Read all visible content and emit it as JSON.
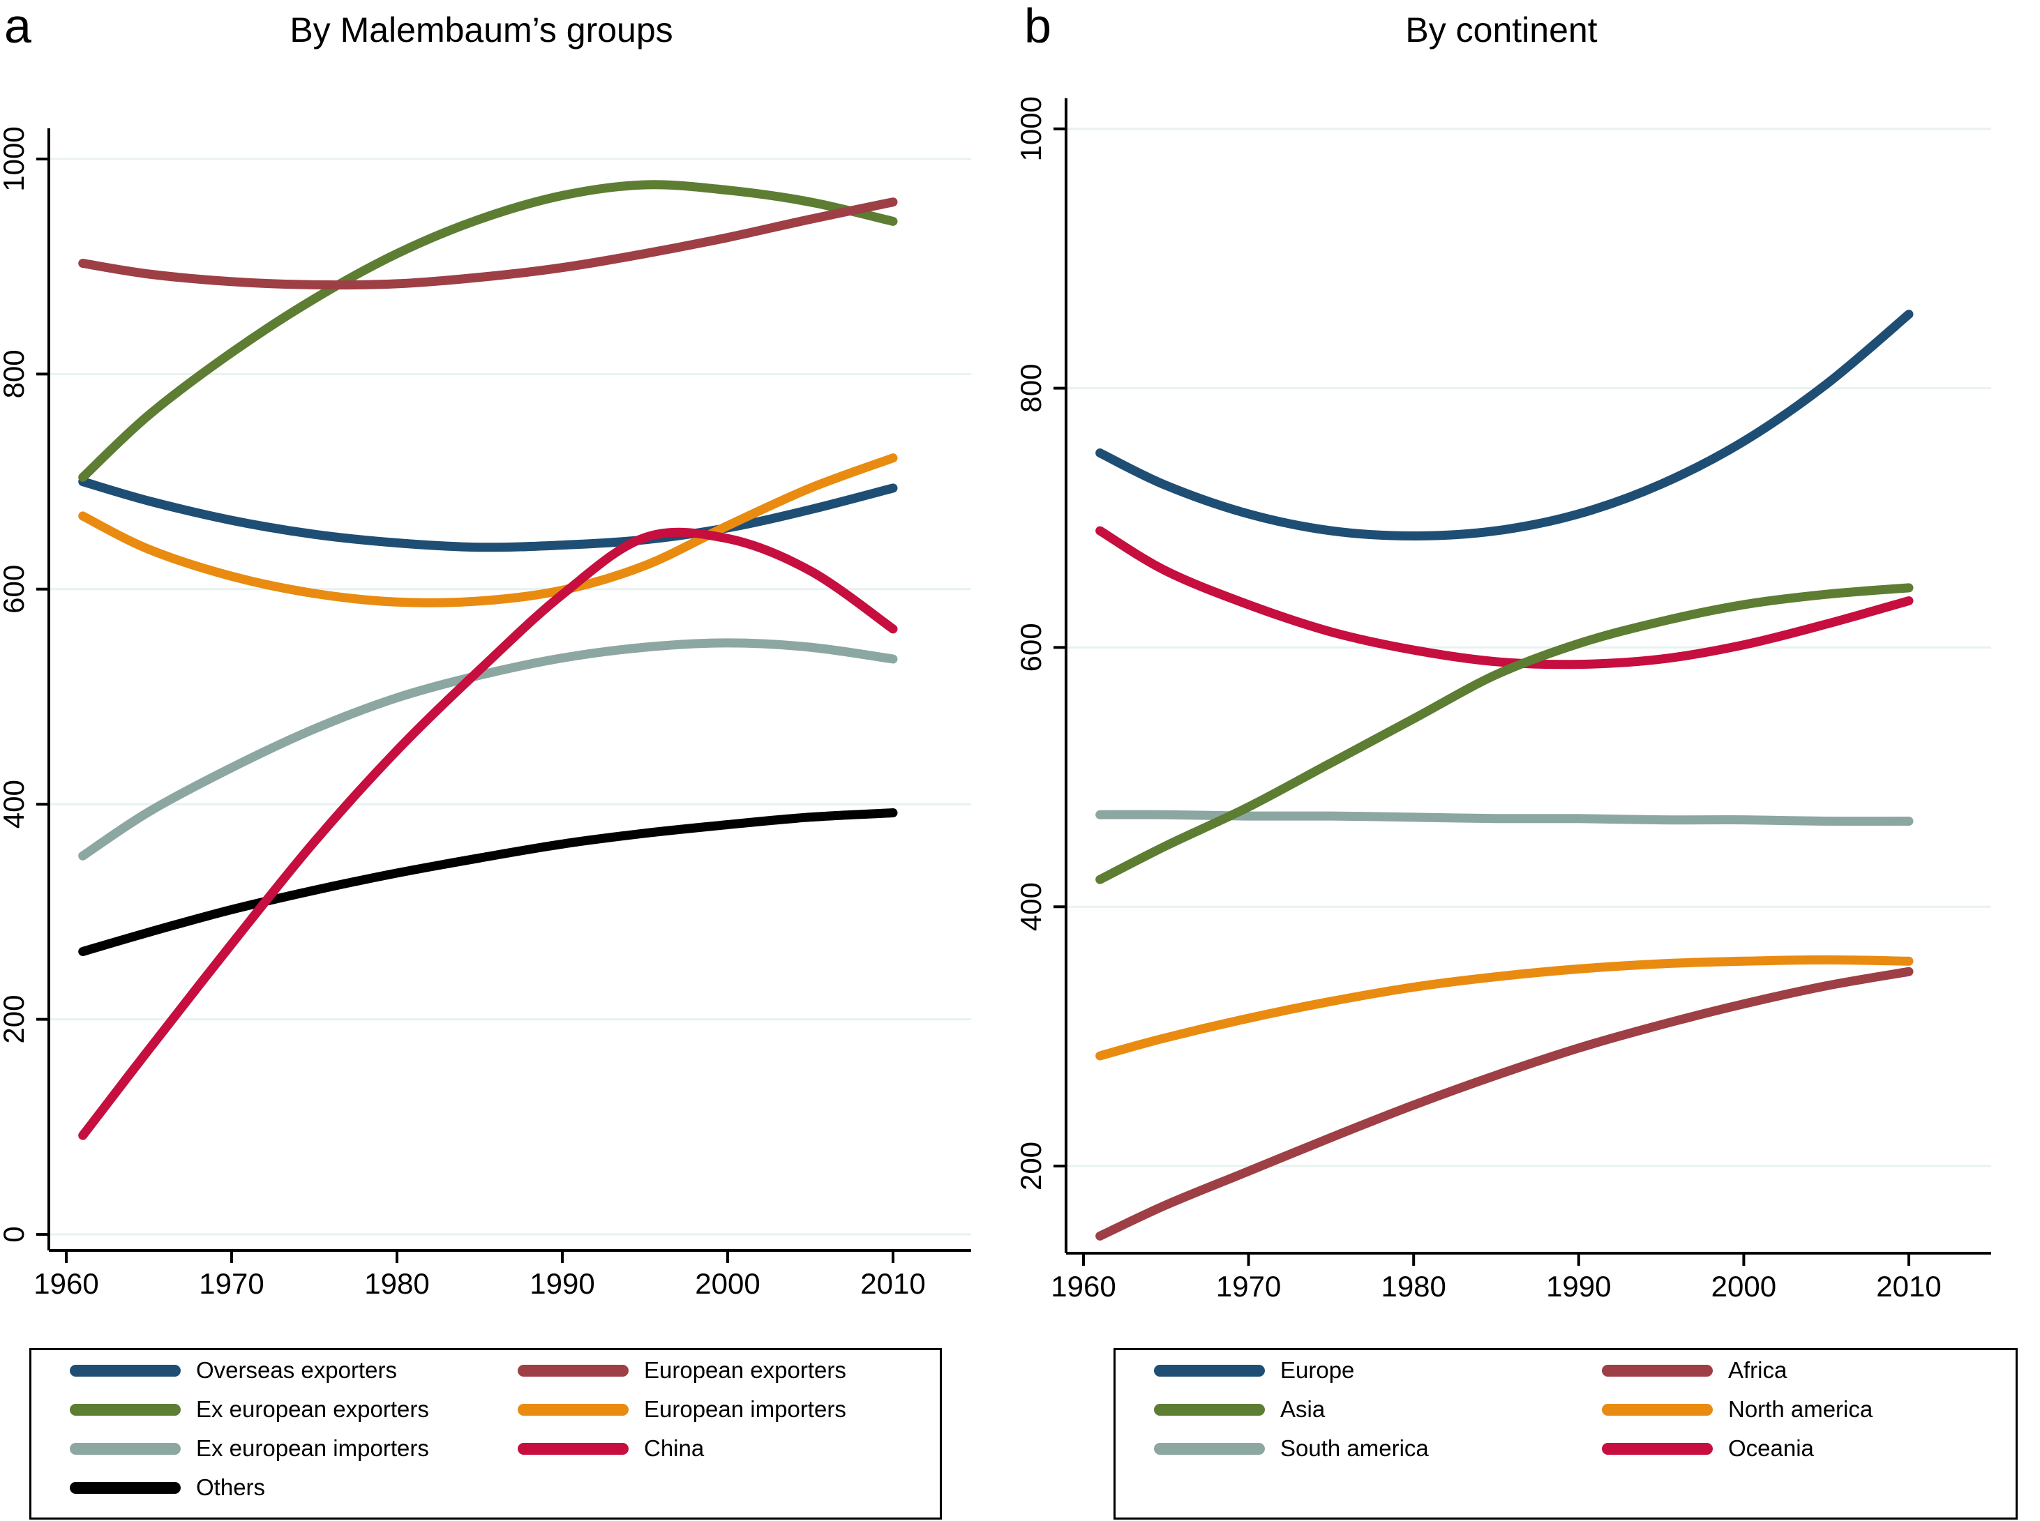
{
  "panels": [
    {
      "letter": "a",
      "title": "By Malembaum’s groups"
    },
    {
      "letter": "b",
      "title": "By continent"
    }
  ],
  "colors": {
    "background": "#ffffff",
    "axis": "#000000",
    "grid": "#e8f2f1",
    "navy": "#1f4e74",
    "maroon": "#9d3f45",
    "olive": "#5d7d33",
    "orange": "#e98b10",
    "sage": "#8ca7a1",
    "crimson": "#c60e3f",
    "black": "#000000"
  },
  "chart_data": [
    {
      "type": "line",
      "panel_label": "a",
      "title": "By Malembaum’s groups",
      "xlabel": "",
      "ylabel": "",
      "x_ticks": [
        1960,
        1970,
        1980,
        1990,
        2000,
        2010
      ],
      "y_ticks": [
        0,
        200,
        400,
        600,
        800,
        1000
      ],
      "ylim": [
        0,
        1030
      ],
      "xlim": [
        1958,
        2014
      ],
      "grid": "horizontal",
      "legend_position": "bottom-box-2col",
      "x": [
        1961,
        1965,
        1970,
        1975,
        1980,
        1985,
        1990,
        1995,
        2000,
        2005,
        2010
      ],
      "series": [
        {
          "name": "Overseas exporters",
          "color": "#1f4e74",
          "values": [
            700,
            682,
            664,
            651,
            643,
            639,
            641,
            646,
            657,
            674,
            694
          ]
        },
        {
          "name": "European exporters",
          "color": "#9d3f45",
          "values": [
            903,
            893,
            886,
            883,
            884,
            890,
            899,
            912,
            927,
            944,
            960
          ]
        },
        {
          "name": "Ex european exporters",
          "color": "#5d7d33",
          "values": [
            704,
            762,
            820,
            870,
            912,
            944,
            966,
            976,
            971,
            960,
            942
          ]
        },
        {
          "name": "European importers",
          "color": "#e98b10",
          "values": [
            668,
            637,
            612,
            596,
            588,
            589,
            599,
            622,
            659,
            694,
            722
          ]
        },
        {
          "name": "Ex european importers",
          "color": "#8ca7a1",
          "values": [
            352,
            393,
            434,
            470,
            499,
            520,
            536,
            546,
            550,
            546,
            535
          ]
        },
        {
          "name": "China",
          "color": "#c60e3f",
          "values": [
            92,
            172,
            270,
            365,
            450,
            525,
            595,
            648,
            647,
            617,
            563
          ]
        },
        {
          "name": "Others",
          "color": "#000000",
          "values": [
            263,
            281,
            302,
            320,
            336,
            350,
            363,
            373,
            381,
            388,
            392
          ]
        }
      ]
    },
    {
      "type": "line",
      "panel_label": "b",
      "title": "By continent",
      "xlabel": "",
      "ylabel": "",
      "x_ticks": [
        1960,
        1970,
        1980,
        1990,
        2000,
        2010
      ],
      "y_ticks": [
        200,
        400,
        600,
        800,
        1000
      ],
      "ylim": [
        133,
        1010
      ],
      "xlim": [
        1958,
        2014
      ],
      "grid": "horizontal",
      "legend_position": "bottom-box-2col",
      "x": [
        1961,
        1965,
        1970,
        1975,
        1980,
        1985,
        1990,
        1995,
        2000,
        2005,
        2010
      ],
      "series": [
        {
          "name": "Europe",
          "color": "#1f4e74",
          "values": [
            750,
            725,
            703,
            690,
            686,
            690,
            703,
            726,
            759,
            803,
            857
          ]
        },
        {
          "name": "Africa",
          "color": "#9d3f45",
          "values": [
            146,
            170,
            196,
            222,
            247,
            270,
            291,
            309,
            325,
            339,
            350
          ]
        },
        {
          "name": "Asia",
          "color": "#5d7d33",
          "values": [
            421,
            447,
            477,
            511,
            545,
            579,
            603,
            620,
            633,
            641,
            646
          ]
        },
        {
          "name": "North america",
          "color": "#e98b10",
          "values": [
            285,
            299,
            314,
            327,
            338,
            346,
            352,
            356,
            358,
            359,
            358
          ]
        },
        {
          "name": "South america",
          "color": "#8ca7a1",
          "values": [
            471,
            471,
            470,
            470,
            469,
            468,
            468,
            467,
            467,
            466,
            466
          ]
        },
        {
          "name": "Oceania",
          "color": "#c60e3f",
          "values": [
            690,
            659,
            633,
            612,
            598,
            589,
            587,
            591,
            602,
            618,
            636
          ]
        }
      ]
    }
  ]
}
